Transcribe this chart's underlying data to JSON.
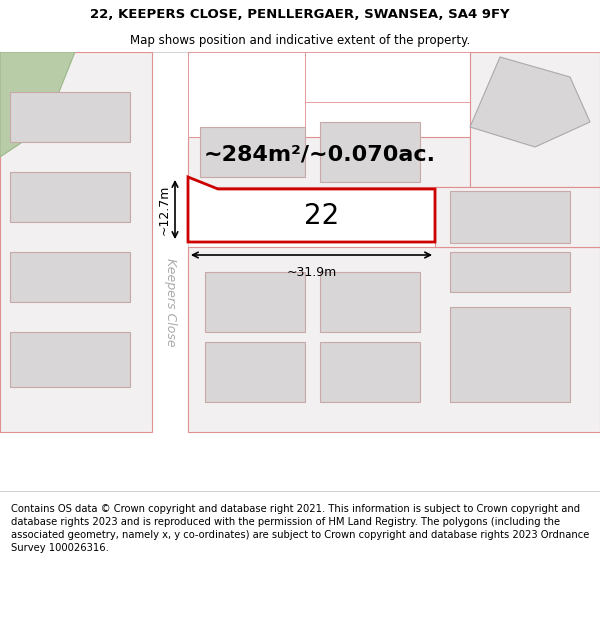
{
  "title_line1": "22, KEEPERS CLOSE, PENLLERGAER, SWANSEA, SA4 9FY",
  "title_line2": "Map shows position and indicative extent of the property.",
  "footer": "Contains OS data © Crown copyright and database right 2021. This information is subject to Crown copyright and database rights 2023 and is reproduced with the permission of HM Land Registry. The polygons (including the associated geometry, namely x, y co-ordinates) are subject to Crown copyright and database rights 2023 Ordnance Survey 100026316.",
  "area_label": "~284m²/~0.070ac.",
  "dim_width": "~31.9m",
  "dim_height": "~12.7m",
  "plot_number": "22",
  "street_name": "Keepers Close",
  "bg_color": "#f2f0f0",
  "road_fill": "#ffffff",
  "plot_outline_color": "#cc0000",
  "building_fill": "#d8d6d6",
  "building_outline": "#c8a8a8",
  "parcel_outline": "#e09090",
  "green_fill": "#b8cca8",
  "dim_color": "#000000",
  "title_fontsize": 9.5,
  "subtitle_fontsize": 8.5,
  "footer_fontsize": 7.2,
  "area_fontsize": 16,
  "plot_num_fontsize": 20,
  "dim_fontsize": 9,
  "street_fontsize": 9
}
